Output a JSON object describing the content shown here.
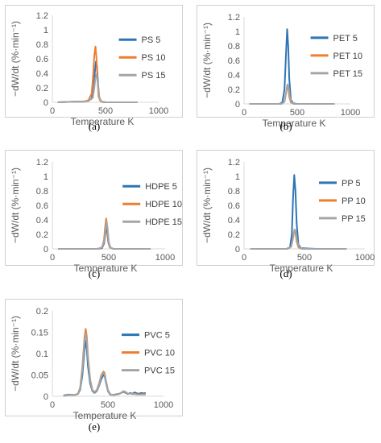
{
  "panels": [
    {
      "id": "a",
      "caption": "(a)",
      "chart_data": {
        "type": "line",
        "xlabel": "Temperature K",
        "ylabel": "−dW/dt (%·min⁻¹)",
        "xlim": [
          0,
          1000
        ],
        "ylim": [
          0,
          1.2
        ],
        "xticks": [
          0,
          500,
          1000
        ],
        "yticks": [
          0,
          0.2,
          0.4,
          0.6,
          0.8,
          1,
          1.2
        ],
        "xtick_labels": [
          "0",
          "500",
          "1000"
        ],
        "ytick_labels": [
          "0",
          "0.2",
          "0.4",
          "0.6",
          "0.8",
          "1",
          "1.2"
        ],
        "legend": "right",
        "grid": false,
        "series": [
          {
            "name": "PS 5",
            "color": "#2e75b6",
            "x": [
              50,
              150,
              250,
              300,
              340,
              370,
              390,
              400,
              410,
              420,
              430,
              440,
              460,
              500,
              600,
              800
            ],
            "y": [
              0,
              0.005,
              0.01,
              0.01,
              0.02,
              0.05,
              0.2,
              0.42,
              0.56,
              0.5,
              0.25,
              0.07,
              0.01,
              0,
              0,
              0
            ]
          },
          {
            "name": "PS 10",
            "color": "#ed7d31",
            "x": [
              50,
              150,
              250,
              300,
              340,
              370,
              385,
              395,
              405,
              415,
              425,
              435,
              450,
              480,
              600,
              800
            ],
            "y": [
              0,
              0.005,
              0.01,
              0.01,
              0.03,
              0.12,
              0.4,
              0.65,
              0.77,
              0.6,
              0.3,
              0.08,
              0.02,
              0,
              0,
              0
            ]
          },
          {
            "name": "PS 15",
            "color": "#a5a5a5",
            "x": [
              50,
              150,
              250,
              300,
              340,
              380,
              395,
              405,
              415,
              425,
              435,
              445,
              460,
              500,
              600,
              800
            ],
            "y": [
              0,
              0.005,
              0.01,
              0.01,
              0.02,
              0.06,
              0.2,
              0.33,
              0.38,
              0.3,
              0.15,
              0.05,
              0.01,
              0,
              0,
              0
            ]
          }
        ]
      }
    },
    {
      "id": "b",
      "caption": "(b)",
      "chart_data": {
        "type": "line",
        "xlabel": "Temperature K",
        "ylabel": "−dW/dt (%·min⁻¹)",
        "xlim": [
          0,
          1000
        ],
        "ylim": [
          0,
          1.2
        ],
        "xticks": [
          0,
          500,
          1000
        ],
        "yticks": [
          0,
          0.2,
          0.4,
          0.6,
          0.8,
          1,
          1.2
        ],
        "xtick_labels": [
          "0",
          "500",
          "1000"
        ],
        "ytick_labels": [
          "0",
          "0.2",
          "0.4",
          "0.6",
          "0.8",
          "1",
          "1.2"
        ],
        "legend": "right",
        "grid": false,
        "series": [
          {
            "name": "PET 5",
            "color": "#2e75b6",
            "x": [
              50,
              200,
              330,
              360,
              380,
              395,
              405,
              415,
              425,
              440,
              460,
              500,
              600,
              850
            ],
            "y": [
              0,
              0,
              0,
              0.02,
              0.2,
              0.7,
              1.03,
              0.8,
              0.35,
              0.06,
              0.01,
              0,
              0,
              0
            ]
          },
          {
            "name": "PET 10",
            "color": "#ed7d31",
            "x": [
              50,
              200,
              350,
              380,
              395,
              405,
              415,
              425,
              440,
              470,
              600,
              850
            ],
            "y": [
              0,
              0,
              0,
              0.03,
              0.15,
              0.25,
              0.22,
              0.1,
              0.02,
              0,
              0,
              0
            ]
          },
          {
            "name": "PET 15",
            "color": "#a5a5a5",
            "x": [
              50,
              200,
              350,
              380,
              395,
              408,
              418,
              430,
              445,
              470,
              600,
              850
            ],
            "y": [
              0,
              0,
              0,
              0.03,
              0.15,
              0.27,
              0.24,
              0.1,
              0.02,
              0,
              0,
              0
            ]
          }
        ]
      }
    },
    {
      "id": "c",
      "caption": "(c)",
      "chart_data": {
        "type": "line",
        "xlabel": "Temperature K",
        "ylabel": "−dW/dt (%·min⁻¹)",
        "xlim": [
          0,
          1000
        ],
        "ylim": [
          0,
          1.2
        ],
        "xticks": [
          0,
          500,
          1000
        ],
        "yticks": [
          0,
          0.2,
          0.4,
          0.6,
          0.8,
          1,
          1.2
        ],
        "xtick_labels": [
          "0",
          "500",
          "1000"
        ],
        "ytick_labels": [
          "0",
          "0.2",
          "0.4",
          "0.6",
          "0.8",
          "1",
          "1.2"
        ],
        "legend": "right",
        "grid": false,
        "series": [
          {
            "name": "HDPE 5",
            "color": "#2e75b6",
            "x": [
              50,
              200,
              400,
              440,
              460,
              470,
              478,
              486,
              495,
              510,
              540,
              700,
              870
            ],
            "y": [
              0,
              0,
              0,
              0.01,
              0.08,
              0.2,
              0.32,
              0.25,
              0.1,
              0.02,
              0,
              0,
              0
            ]
          },
          {
            "name": "HDPE 10",
            "color": "#ed7d31",
            "x": [
              50,
              200,
              400,
              440,
              458,
              468,
              477,
              486,
              496,
              510,
              540,
              700,
              870
            ],
            "y": [
              0,
              0,
              0,
              0.02,
              0.12,
              0.3,
              0.42,
              0.33,
              0.12,
              0.02,
              0,
              0,
              0
            ]
          },
          {
            "name": "HDPE 15",
            "color": "#a5a5a5",
            "x": [
              50,
              200,
              400,
              440,
              460,
              470,
              480,
              490,
              500,
              515,
              540,
              700,
              870
            ],
            "y": [
              0,
              0,
              0,
              0.02,
              0.1,
              0.25,
              0.38,
              0.28,
              0.1,
              0.02,
              0,
              0,
              0
            ]
          }
        ]
      }
    },
    {
      "id": "d",
      "caption": "(d)",
      "chart_data": {
        "type": "line",
        "xlabel": "Temperature K",
        "ylabel": "−dW/dt (%·min⁻¹)",
        "xlim": [
          0,
          1000
        ],
        "ylim": [
          0,
          1.2
        ],
        "xticks": [
          0,
          500,
          1000
        ],
        "yticks": [
          0,
          0.2,
          0.4,
          0.6,
          0.8,
          1,
          1.2
        ],
        "xtick_labels": [
          "0",
          "500",
          "1000"
        ],
        "ytick_labels": [
          "0",
          "0.2",
          "0.4",
          "0.6",
          "0.8",
          "1",
          "1.2"
        ],
        "legend": "right",
        "grid": false,
        "series": [
          {
            "name": "PP 5",
            "color": "#2e75b6",
            "x": [
              50,
              200,
              350,
              380,
              395,
              405,
              415,
              425,
              435,
              450,
              470,
              600,
              850
            ],
            "y": [
              0,
              0,
              0,
              0.02,
              0.2,
              0.7,
              1.02,
              0.8,
              0.35,
              0.06,
              0.01,
              0,
              0
            ]
          },
          {
            "name": "PP 10",
            "color": "#ed7d31",
            "x": [
              50,
              200,
              360,
              390,
              405,
              415,
              425,
              435,
              450,
              480,
              600,
              850
            ],
            "y": [
              0,
              0,
              0,
              0.03,
              0.15,
              0.25,
              0.22,
              0.1,
              0.02,
              0,
              0,
              0
            ]
          },
          {
            "name": "PP 15",
            "color": "#a5a5a5",
            "x": [
              50,
              200,
              360,
              390,
              405,
              418,
              428,
              440,
              455,
              480,
              600,
              850
            ],
            "y": [
              0,
              0,
              0,
              0.03,
              0.15,
              0.27,
              0.24,
              0.1,
              0.02,
              0,
              0,
              0
            ]
          }
        ]
      }
    },
    {
      "id": "e",
      "caption": "(e)",
      "chart_data": {
        "type": "line",
        "xlabel": "Temperature K",
        "ylabel": "−dW/dt (%·min⁻¹)",
        "xlim": [
          0,
          1000
        ],
        "ylim": [
          0,
          0.2
        ],
        "xticks": [
          0,
          500,
          1000
        ],
        "yticks": [
          0,
          0.05,
          0.1,
          0.15,
          0.2
        ],
        "xtick_labels": [
          "0",
          "500",
          "1000"
        ],
        "ytick_labels": [
          "0",
          "0.05",
          "0.1",
          "0.15",
          "0.2"
        ],
        "legend": "right",
        "grid": false,
        "series": [
          {
            "name": "PVC 5",
            "color": "#2e75b6",
            "x": [
              100,
              150,
              200,
              230,
              250,
              270,
              290,
              300,
              310,
              320,
              340,
              360,
              380,
              400,
              420,
              440,
              460,
              470,
              480,
              500,
              520,
              540,
              560,
              600,
              640,
              660,
              680,
              700,
              720,
              740,
              760,
              780,
              800,
              820,
              840
            ],
            "y": [
              0.002,
              0.004,
              0.003,
              0.005,
              0.015,
              0.05,
              0.11,
              0.13,
              0.11,
              0.07,
              0.03,
              0.012,
              0.008,
              0.012,
              0.025,
              0.04,
              0.05,
              0.048,
              0.035,
              0.012,
              0.004,
              0.003,
              0.004,
              0.006,
              0.01,
              0.008,
              0.005,
              0.008,
              0.006,
              0.009,
              0.007,
              0.006,
              0.008,
              0.007,
              0.008
            ]
          },
          {
            "name": "PVC 10",
            "color": "#ed7d31",
            "x": [
              100,
              150,
              200,
              230,
              250,
              270,
              290,
              300,
              310,
              320,
              340,
              360,
              380,
              400,
              420,
              440,
              460,
              470,
              480,
              500,
              520,
              540,
              560,
              600,
              640,
              660,
              680,
              700,
              720,
              740,
              760,
              780,
              800,
              820,
              840
            ],
            "y": [
              0.001,
              0.003,
              0.003,
              0.006,
              0.02,
              0.07,
              0.14,
              0.158,
              0.14,
              0.095,
              0.04,
              0.015,
              0.01,
              0.015,
              0.03,
              0.05,
              0.058,
              0.055,
              0.04,
              0.015,
              0.005,
              0.003,
              0.003,
              0.005,
              0.012,
              0.01,
              0.006,
              0.007,
              0.005,
              0.006,
              0.005,
              0.004,
              0.005,
              0.005,
              0.005
            ]
          },
          {
            "name": "PVC 15",
            "color": "#a5a5a5",
            "x": [
              100,
              150,
              200,
              230,
              250,
              270,
              290,
              300,
              310,
              320,
              340,
              360,
              380,
              400,
              420,
              440,
              460,
              470,
              480,
              500,
              520,
              540,
              560,
              600,
              640,
              660,
              680,
              700,
              720,
              740,
              760,
              780,
              800,
              820,
              840
            ],
            "y": [
              0.001,
              0.003,
              0.003,
              0.006,
              0.018,
              0.065,
              0.13,
              0.148,
              0.13,
              0.09,
              0.038,
              0.014,
              0.009,
              0.014,
              0.028,
              0.047,
              0.055,
              0.052,
              0.038,
              0.014,
              0.005,
              0.003,
              0.003,
              0.005,
              0.011,
              0.009,
              0.006,
              0.006,
              0.005,
              0.005,
              0.004,
              0.004,
              0.004,
              0.004,
              0.004
            ]
          }
        ]
      }
    }
  ]
}
